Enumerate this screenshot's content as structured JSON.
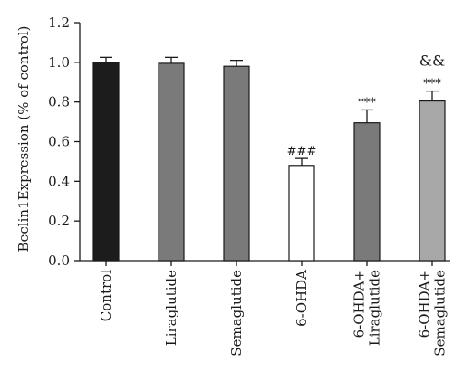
{
  "chart_data": {
    "type": "bar",
    "ylabel": "Beclin1Expression (% of control)",
    "xlabel": "",
    "title": "",
    "ylim": [
      0,
      1.2
    ],
    "yticks": [
      "0.0",
      "0.2",
      "0.4",
      "0.6",
      "0.8",
      "1.0",
      "1.2"
    ],
    "categories": [
      {
        "lines": [
          "Control"
        ]
      },
      {
        "lines": [
          "Liraglutide"
        ]
      },
      {
        "lines": [
          "Semaglutide"
        ]
      },
      {
        "lines": [
          "6-OHDA"
        ]
      },
      {
        "lines": [
          "6-OHDA+",
          "Liraglutide"
        ]
      },
      {
        "lines": [
          "6-OHDA+",
          "Semaglutide"
        ]
      }
    ],
    "values": [
      1.0,
      0.995,
      0.98,
      0.48,
      0.695,
      0.805
    ],
    "errors": [
      0.025,
      0.03,
      0.03,
      0.035,
      0.065,
      0.05
    ],
    "colors": [
      "#1c1c1c",
      "#7a7a7a",
      "#7a7a7a",
      "#ffffff",
      "#7a7a7a",
      "#a8a8a8"
    ],
    "annotations": [
      {
        "index": 3,
        "lines": [
          "###"
        ]
      },
      {
        "index": 4,
        "lines": [
          "***"
        ]
      },
      {
        "index": 5,
        "lines": [
          "&&",
          "***"
        ]
      }
    ]
  }
}
